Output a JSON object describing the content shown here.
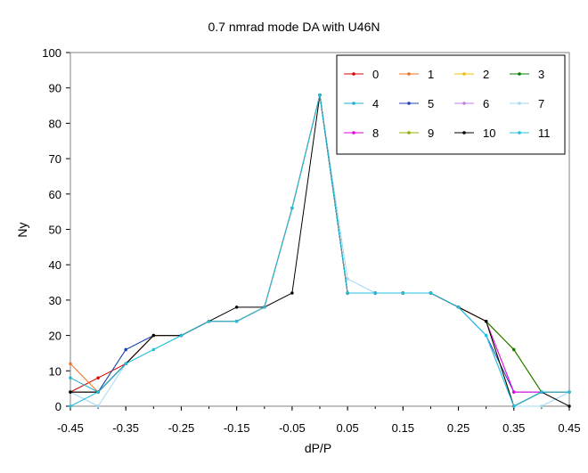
{
  "chart_data": {
    "type": "line",
    "title": "0.7 nmrad mode DA with U46N",
    "xlabel": "dP/P",
    "ylabel": "Ny",
    "x": [
      -0.45,
      -0.4,
      -0.35,
      -0.3,
      -0.25,
      -0.2,
      -0.15,
      -0.1,
      -0.05,
      0,
      0.05,
      0.1,
      0.15,
      0.2,
      0.25,
      0.3,
      0.35,
      0.4,
      0.45
    ],
    "xlim": [
      -0.45,
      0.45
    ],
    "ylim": [
      0,
      100
    ],
    "xticks": [
      "-0.45",
      "-0.35",
      "-0.25",
      "-0.15",
      "-0.05",
      "0.05",
      "0.15",
      "0.25",
      "0.35",
      "0.45"
    ],
    "yticks": [
      "0",
      "10",
      "20",
      "30",
      "40",
      "50",
      "60",
      "70",
      "80",
      "90",
      "100"
    ],
    "legend_position": "top-right",
    "grid": false,
    "series": [
      {
        "name": "0",
        "color": "#e00000",
        "values": [
          4,
          8,
          12,
          20,
          20,
          24,
          24,
          28,
          56,
          88,
          32,
          32,
          32,
          32,
          28,
          24,
          16,
          4,
          4
        ]
      },
      {
        "name": "1",
        "color": "#f07020",
        "values": [
          12,
          4,
          12,
          20,
          20,
          24,
          24,
          28,
          56,
          88,
          32,
          32,
          32,
          32,
          28,
          24,
          16,
          4,
          4
        ]
      },
      {
        "name": "2",
        "color": "#f0c000",
        "values": [
          4,
          4,
          12,
          20,
          20,
          24,
          24,
          28,
          56,
          88,
          32,
          32,
          32,
          32,
          28,
          24,
          16,
          4,
          4
        ]
      },
      {
        "name": "3",
        "color": "#008000",
        "values": [
          4,
          4,
          16,
          20,
          20,
          24,
          24,
          28,
          56,
          88,
          32,
          32,
          32,
          32,
          28,
          24,
          16,
          4,
          4
        ]
      },
      {
        "name": "4",
        "color": "#20b0d0",
        "values": [
          8,
          4,
          12,
          16,
          20,
          24,
          24,
          28,
          56,
          88,
          32,
          32,
          32,
          32,
          28,
          20,
          0,
          4,
          4
        ]
      },
      {
        "name": "5",
        "color": "#2040c0",
        "values": [
          4,
          4,
          16,
          20,
          20,
          24,
          24,
          28,
          56,
          88,
          32,
          32,
          32,
          32,
          28,
          20,
          4,
          4,
          4
        ]
      },
      {
        "name": "6",
        "color": "#c080e0",
        "values": [
          4,
          4,
          12,
          20,
          20,
          24,
          24,
          28,
          56,
          88,
          32,
          32,
          32,
          32,
          28,
          24,
          4,
          4,
          4
        ]
      },
      {
        "name": "7",
        "color": "#a0d8f0",
        "values": [
          4,
          0,
          12,
          16,
          20,
          24,
          24,
          28,
          56,
          88,
          36,
          32,
          32,
          32,
          28,
          20,
          0,
          0,
          4
        ]
      },
      {
        "name": "8",
        "color": "#e000e0",
        "values": [
          4,
          4,
          12,
          20,
          20,
          24,
          24,
          28,
          56,
          88,
          32,
          32,
          32,
          32,
          28,
          24,
          4,
          4,
          4
        ]
      },
      {
        "name": "9",
        "color": "#90b000",
        "values": [
          4,
          4,
          12,
          20,
          20,
          24,
          24,
          28,
          56,
          88,
          32,
          32,
          32,
          32,
          28,
          24,
          0,
          4,
          4
        ]
      },
      {
        "name": "10",
        "color": "#000000",
        "values": [
          4,
          4,
          12,
          20,
          20,
          24,
          28,
          28,
          32,
          88,
          32,
          32,
          32,
          32,
          28,
          24,
          0,
          4,
          0
        ]
      },
      {
        "name": "11",
        "color": "#20c0e0",
        "values": [
          0,
          4,
          12,
          16,
          20,
          24,
          24,
          28,
          56,
          88,
          32,
          32,
          32,
          32,
          28,
          20,
          0,
          4,
          4
        ]
      }
    ]
  }
}
